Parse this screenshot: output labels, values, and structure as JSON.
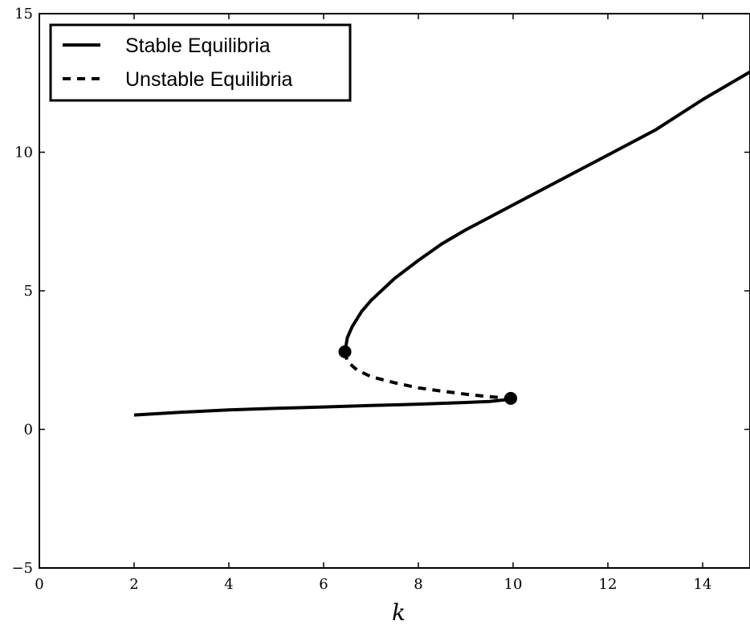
{
  "chart_data": {
    "type": "line",
    "title": "",
    "xlabel": "k",
    "ylabel": "",
    "xlim": [
      0,
      15
    ],
    "ylim": [
      -5,
      15
    ],
    "xticks": [
      0,
      2,
      4,
      6,
      8,
      10,
      12,
      14
    ],
    "yticks": [
      -5,
      0,
      5,
      10,
      15
    ],
    "xtick_labels": [
      "0",
      "2",
      "4",
      "6",
      "8",
      "10",
      "12",
      "14"
    ],
    "ytick_labels": [
      "−5",
      "0",
      "5",
      "10",
      "15"
    ],
    "grid": false,
    "legend_position": "top-left",
    "series": [
      {
        "name": "Stable Equilibria",
        "style": "solid",
        "color": "#000000",
        "segments": [
          {
            "x": [
              2.0,
              3.0,
              4.0,
              5.0,
              6.0,
              7.0,
              8.0,
              9.0,
              9.5,
              9.8,
              9.95
            ],
            "y": [
              0.52,
              0.62,
              0.7,
              0.76,
              0.81,
              0.86,
              0.91,
              0.97,
              1.01,
              1.06,
              1.12
            ]
          },
          {
            "x": [
              6.45,
              6.5,
              6.6,
              6.8,
              7.0,
              7.5,
              8.0,
              8.5,
              9.0,
              10.0,
              11.0,
              12.0,
              13.0,
              14.0,
              15.0
            ],
            "y": [
              2.8,
              3.3,
              3.7,
              4.25,
              4.65,
              5.45,
              6.1,
              6.7,
              7.2,
              8.1,
              9.0,
              9.9,
              10.8,
              11.9,
              12.9
            ]
          }
        ]
      },
      {
        "name": "Unstable Equilibria",
        "style": "dashed",
        "color": "#000000",
        "segments": [
          {
            "x": [
              6.45,
              6.5,
              6.7,
              7.0,
              7.5,
              8.0,
              8.5,
              9.0,
              9.5,
              9.95
            ],
            "y": [
              2.8,
              2.45,
              2.15,
              1.9,
              1.68,
              1.5,
              1.38,
              1.27,
              1.18,
              1.12
            ]
          }
        ]
      }
    ],
    "markers": [
      {
        "x": 6.45,
        "y": 2.8
      },
      {
        "x": 9.95,
        "y": 1.12
      }
    ]
  }
}
